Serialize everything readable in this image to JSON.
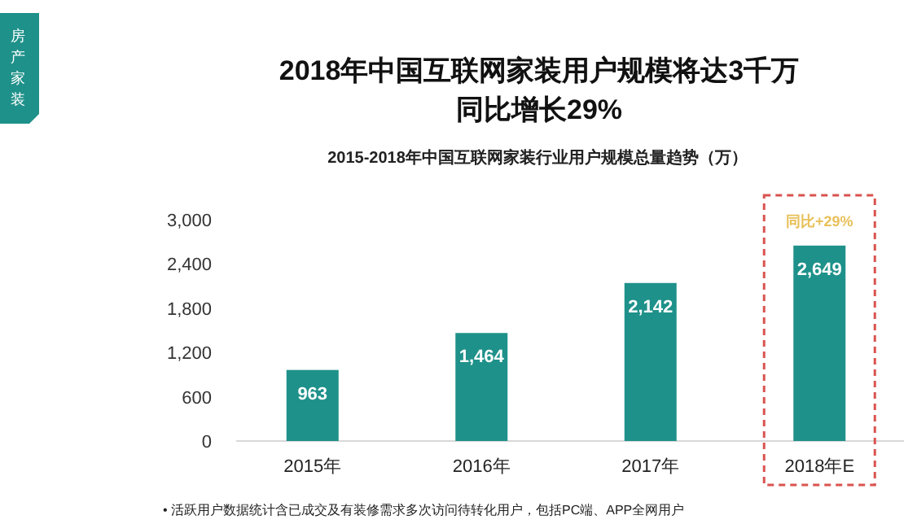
{
  "chart_data": {
    "type": "bar",
    "title": "2018年中国互联网家装用户规模将达3千万同比增长29%",
    "subtitle": "2015-2018年中国互联网家装行业用户规模总量趋势（万）",
    "categories": [
      "2015年",
      "2016年",
      "2017年",
      "2018年E"
    ],
    "series": [
      {
        "color": "#1e918a",
        "values": [
          963,
          1464,
          2142,
          2649
        ],
        "value_labels": [
          "963",
          "1,464",
          "2,142",
          "2,649"
        ]
      }
    ],
    "ylim": [
      0,
      3000
    ],
    "yticks": [
      0,
      600,
      {
        "value": 1200,
        "label": "1,200"
      },
      {
        "value": 1800,
        "label": "1,800"
      },
      {
        "value": 2400,
        "label": "2,400"
      },
      {
        "value": 3000,
        "label": "3,000"
      }
    ],
    "grid": false,
    "annotations": [
      "房产家装",
      {
        "text": "同比+29%",
        "x": "2018年E",
        "y": 2649
      },
      "• 活跃用户数据统计含已成交及有装修需求多次访问待转化用户，包括PC端、APP全网用户"
    ]
  }
}
